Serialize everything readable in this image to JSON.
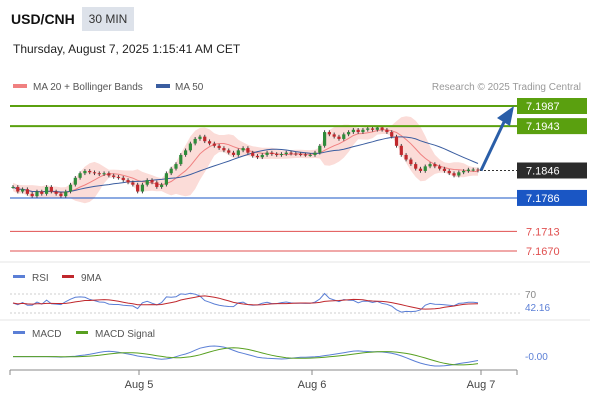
{
  "header": {
    "symbol": "USD/CNH",
    "timeframe": "30 MIN",
    "datetime": "Thursday, August 7, 2025 1:15:41 AM CET"
  },
  "legend": {
    "bollinger_label": "MA 20 + Bollinger Bands",
    "ma50_label": "MA 50",
    "copyright": "Research © 2025 Trading Central"
  },
  "rsi_panel": {
    "rsi_label": "RSI",
    "ma_label": "9MA",
    "level_label": "70",
    "value_label": "42.16"
  },
  "macd_panel": {
    "macd_label": "MACD",
    "signal_label": "MACD Signal",
    "value_label": "-0.00"
  },
  "colors": {
    "green": "#5aa00f",
    "blue": "#1a56c4",
    "red_line": "#e05050",
    "band_fill": "#fbdcd8",
    "ma20": "#f08080",
    "ma50": "#3a5da0",
    "current_box": "#2b2b2b",
    "arrow": "#2a5ea8",
    "rsi": "#5b7fd6",
    "rsi_ma": "#c0282d",
    "macd": "#5b7fd6",
    "signal": "#58a020"
  },
  "chart_data": {
    "type": "candlestick",
    "x_tick_labels": [
      "Aug 5",
      "Aug 6",
      "Aug 7"
    ],
    "price_levels": [
      {
        "value": 7.1987,
        "label": "7.1987",
        "kind": "resistance"
      },
      {
        "value": 7.1943,
        "label": "7.1943",
        "kind": "resistance"
      },
      {
        "value": 7.1846,
        "label": "7.1846",
        "kind": "current"
      },
      {
        "value": 7.1786,
        "label": "7.1786",
        "kind": "support"
      },
      {
        "value": 7.1713,
        "label": "7.1713",
        "kind": "level"
      },
      {
        "value": 7.167,
        "label": "7.1670",
        "kind": "level"
      }
    ],
    "projection": {
      "from": 7.1846,
      "to": 7.1987
    },
    "closes": [
      7.181,
      7.18,
      7.1805,
      7.1795,
      7.179,
      7.18,
      7.1795,
      7.181,
      7.18,
      7.1795,
      7.179,
      7.18,
      7.1815,
      7.183,
      7.184,
      7.1845,
      7.1842,
      7.184,
      7.1838,
      7.184,
      7.1835,
      7.1832,
      7.183,
      7.1825,
      7.182,
      7.1815,
      7.18,
      7.1815,
      7.1825,
      7.182,
      7.181,
      7.1815,
      7.184,
      7.185,
      7.186,
      7.188,
      7.189,
      7.1905,
      7.1915,
      7.192,
      7.191,
      7.1905,
      7.19,
      7.1895,
      7.189,
      7.1885,
      7.188,
      7.189,
      7.1895,
      7.1885,
      7.1878,
      7.1875,
      7.188,
      7.1885,
      7.1882,
      7.188,
      7.1882,
      7.1885,
      7.1883,
      7.1882,
      7.1881,
      7.188,
      7.188,
      7.1885,
      7.19,
      7.193,
      7.1925,
      7.192,
      7.1915,
      7.1925,
      7.193,
      7.1935,
      7.193,
      7.1935,
      7.1938,
      7.1935,
      7.194,
      7.1935,
      7.193,
      7.192,
      7.19,
      7.188,
      7.187,
      7.186,
      7.185,
      7.1845,
      7.1855,
      7.186,
      7.1855,
      7.185,
      7.1845,
      7.184,
      7.1835,
      7.1842,
      7.1845,
      7.1848,
      7.1848,
      7.1846
    ]
  }
}
